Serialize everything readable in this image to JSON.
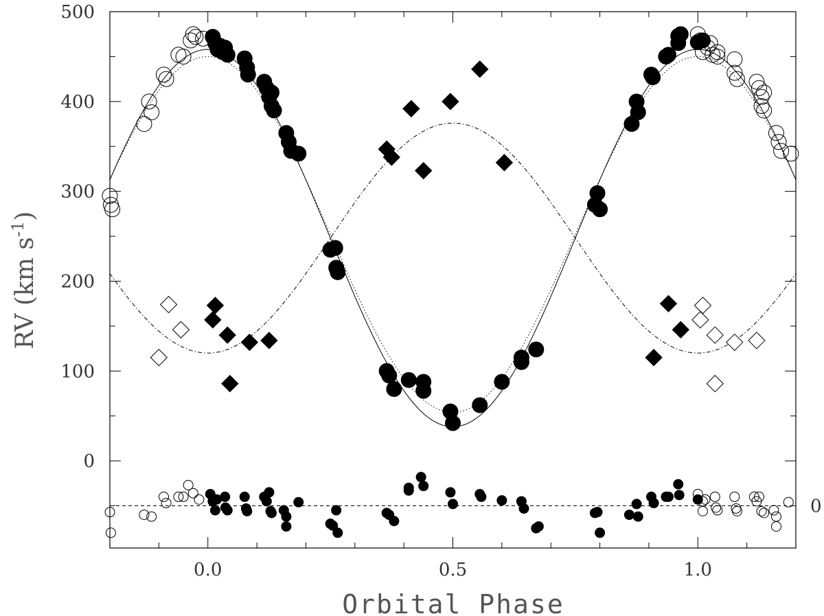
{
  "chart_data": {
    "type": "scatter",
    "title": "",
    "xlabel": "Orbital Phase",
    "ylabel": "RV (km s",
    "ylabel_sup": "-1",
    "ylabel_end": ")",
    "xlim": [
      -0.2,
      1.2
    ],
    "ylim": [
      -97,
      500
    ],
    "x_ticks": [
      {
        "value": 0.0,
        "label": "0.0"
      },
      {
        "value": 0.5,
        "label": "0.5"
      },
      {
        "value": 1.0,
        "label": "1.0"
      }
    ],
    "y_ticks": [
      {
        "value": 0,
        "label": "0"
      },
      {
        "value": 100,
        "label": "100"
      },
      {
        "value": 200,
        "label": "200"
      },
      {
        "value": 300,
        "label": "300"
      },
      {
        "value": 400,
        "label": "400"
      },
      {
        "value": 500,
        "label": "500"
      }
    ],
    "residual_zero": {
      "value": -50,
      "label": "0"
    },
    "grid": false,
    "curves": {
      "primary_solid": {
        "gamma": 248,
        "K": 210
      },
      "primary_dotted": {
        "gamma": 252,
        "K": 198
      },
      "secondary_dashdot": {
        "gamma": 248,
        "K": -128
      }
    },
    "series": [
      {
        "marker": "filled-circle",
        "points": [
          [
            0.01,
            472
          ],
          [
            0.015,
            465
          ],
          [
            0.02,
            458
          ],
          [
            0.025,
            462
          ],
          [
            0.03,
            455
          ],
          [
            0.035,
            460
          ],
          [
            0.04,
            452
          ],
          [
            0.075,
            448
          ],
          [
            0.08,
            438
          ],
          [
            0.082,
            430
          ],
          [
            0.115,
            422
          ],
          [
            0.12,
            415
          ],
          [
            0.125,
            405
          ],
          [
            0.13,
            410
          ],
          [
            0.13,
            395
          ],
          [
            0.135,
            390
          ],
          [
            0.16,
            365
          ],
          [
            0.165,
            355
          ],
          [
            0.17,
            345
          ],
          [
            0.185,
            342
          ],
          [
            0.25,
            235
          ],
          [
            0.26,
            237
          ],
          [
            0.262,
            215
          ],
          [
            0.265,
            210
          ],
          [
            0.365,
            100
          ],
          [
            0.37,
            95
          ],
          [
            0.38,
            80
          ],
          [
            0.41,
            90
          ],
          [
            0.44,
            88
          ],
          [
            0.44,
            78
          ],
          [
            0.495,
            55
          ],
          [
            0.5,
            42
          ],
          [
            0.555,
            62
          ],
          [
            0.6,
            88
          ],
          [
            0.64,
            115
          ],
          [
            0.64,
            110
          ],
          [
            0.67,
            124
          ],
          [
            0.79,
            285
          ],
          [
            0.795,
            298
          ],
          [
            0.8,
            280
          ],
          [
            0.865,
            375
          ],
          [
            0.875,
            400
          ],
          [
            0.878,
            388
          ],
          [
            0.905,
            430
          ],
          [
            0.908,
            427
          ],
          [
            0.935,
            450
          ],
          [
            0.94,
            452
          ],
          [
            0.96,
            465
          ],
          [
            0.96,
            473
          ],
          [
            0.965,
            475
          ],
          [
            1.0,
            466
          ],
          [
            1.01,
            468
          ]
        ]
      },
      {
        "marker": "open-circle",
        "points": [
          [
            -0.2,
            295
          ],
          [
            -0.198,
            285
          ],
          [
            -0.195,
            280
          ],
          [
            -0.13,
            375
          ],
          [
            -0.12,
            400
          ],
          [
            -0.115,
            388
          ],
          [
            -0.09,
            430
          ],
          [
            -0.085,
            425
          ],
          [
            -0.06,
            452
          ],
          [
            -0.05,
            450
          ],
          [
            -0.035,
            468
          ],
          [
            -0.03,
            475
          ],
          [
            -0.025,
            472
          ],
          [
            -0.01,
            470
          ],
          [
            1.0,
            475
          ],
          [
            1.005,
            468
          ],
          [
            1.01,
            455
          ],
          [
            1.02,
            460
          ],
          [
            1.025,
            465
          ],
          [
            1.03,
            452
          ],
          [
            1.04,
            455
          ],
          [
            1.04,
            450
          ],
          [
            1.075,
            447
          ],
          [
            1.075,
            432
          ],
          [
            1.08,
            425
          ],
          [
            1.12,
            422
          ],
          [
            1.125,
            415
          ],
          [
            1.13,
            405
          ],
          [
            1.135,
            410
          ],
          [
            1.13,
            395
          ],
          [
            1.135,
            390
          ],
          [
            1.16,
            365
          ],
          [
            1.165,
            355
          ],
          [
            1.17,
            345
          ],
          [
            1.19,
            342
          ]
        ]
      },
      {
        "marker": "filled-diamond",
        "points": [
          [
            0.015,
            173
          ],
          [
            0.01,
            157
          ],
          [
            0.04,
            140
          ],
          [
            0.045,
            86
          ],
          [
            0.085,
            132
          ],
          [
            0.125,
            134
          ],
          [
            0.365,
            347
          ],
          [
            0.375,
            338
          ],
          [
            0.415,
            392
          ],
          [
            0.44,
            323
          ],
          [
            0.495,
            400
          ],
          [
            0.555,
            436
          ],
          [
            0.605,
            332
          ],
          [
            0.91,
            115
          ],
          [
            0.94,
            175
          ],
          [
            0.965,
            146
          ]
        ]
      },
      {
        "marker": "open-diamond",
        "points": [
          [
            -0.08,
            174
          ],
          [
            -0.055,
            146
          ],
          [
            -0.1,
            115
          ],
          [
            1.01,
            173
          ],
          [
            1.005,
            157
          ],
          [
            1.035,
            140
          ],
          [
            1.035,
            86
          ],
          [
            1.075,
            132
          ],
          [
            1.12,
            134
          ]
        ]
      },
      {
        "marker": "small-filled-circle",
        "points": [
          [
            0.005,
            -37
          ],
          [
            0.01,
            -45
          ],
          [
            0.015,
            -55
          ],
          [
            0.018,
            -43
          ],
          [
            0.035,
            -40
          ],
          [
            0.036,
            -52
          ],
          [
            0.04,
            -55
          ],
          [
            0.075,
            -40
          ],
          [
            0.078,
            -53
          ],
          [
            0.08,
            -56
          ],
          [
            0.115,
            -40
          ],
          [
            0.12,
            -45
          ],
          [
            0.125,
            -35
          ],
          [
            0.128,
            -56
          ],
          [
            0.13,
            -58
          ],
          [
            0.155,
            -55
          ],
          [
            0.16,
            -62
          ],
          [
            0.16,
            -73
          ],
          [
            0.185,
            -46
          ],
          [
            0.25,
            -70
          ],
          [
            0.255,
            -72
          ],
          [
            0.262,
            -55
          ],
          [
            0.265,
            -80
          ],
          [
            0.365,
            -58
          ],
          [
            0.37,
            -60
          ],
          [
            0.38,
            -67
          ],
          [
            0.41,
            -30
          ],
          [
            0.41,
            -33
          ],
          [
            0.435,
            -18
          ],
          [
            0.44,
            -28
          ],
          [
            0.495,
            -35
          ],
          [
            0.5,
            -48
          ],
          [
            0.555,
            -37
          ],
          [
            0.558,
            -40
          ],
          [
            0.6,
            -44
          ],
          [
            0.64,
            -45
          ],
          [
            0.645,
            -53
          ],
          [
            0.67,
            -75
          ],
          [
            0.675,
            -73
          ],
          [
            0.79,
            -58
          ],
          [
            0.795,
            -57
          ],
          [
            0.8,
            -80
          ],
          [
            0.86,
            -60
          ],
          [
            0.875,
            -48
          ],
          [
            0.878,
            -62
          ],
          [
            0.905,
            -40
          ],
          [
            0.91,
            -47
          ],
          [
            0.935,
            -40
          ],
          [
            0.94,
            -40
          ],
          [
            0.96,
            -26
          ],
          [
            0.962,
            -38
          ],
          [
            1.0,
            -43
          ]
        ]
      },
      {
        "marker": "small-open-circle",
        "points": [
          [
            -0.2,
            -57
          ],
          [
            -0.198,
            -80
          ],
          [
            -0.13,
            -60
          ],
          [
            -0.115,
            -62
          ],
          [
            -0.09,
            -40
          ],
          [
            -0.085,
            -47
          ],
          [
            -0.06,
            -40
          ],
          [
            -0.05,
            -40
          ],
          [
            -0.04,
            -27
          ],
          [
            -0.03,
            -36
          ],
          [
            -0.018,
            -43
          ],
          [
            1.0,
            -37
          ],
          [
            1.01,
            -45
          ],
          [
            1.01,
            -56
          ],
          [
            1.015,
            -43
          ],
          [
            1.035,
            -40
          ],
          [
            1.037,
            -52
          ],
          [
            1.04,
            -55
          ],
          [
            1.075,
            -40
          ],
          [
            1.078,
            -53
          ],
          [
            1.08,
            -56
          ],
          [
            1.115,
            -40
          ],
          [
            1.12,
            -45
          ],
          [
            1.125,
            -40
          ],
          [
            1.13,
            -56
          ],
          [
            1.135,
            -58
          ],
          [
            1.155,
            -55
          ],
          [
            1.16,
            -62
          ],
          [
            1.16,
            -73
          ],
          [
            1.185,
            -46
          ]
        ]
      }
    ]
  }
}
